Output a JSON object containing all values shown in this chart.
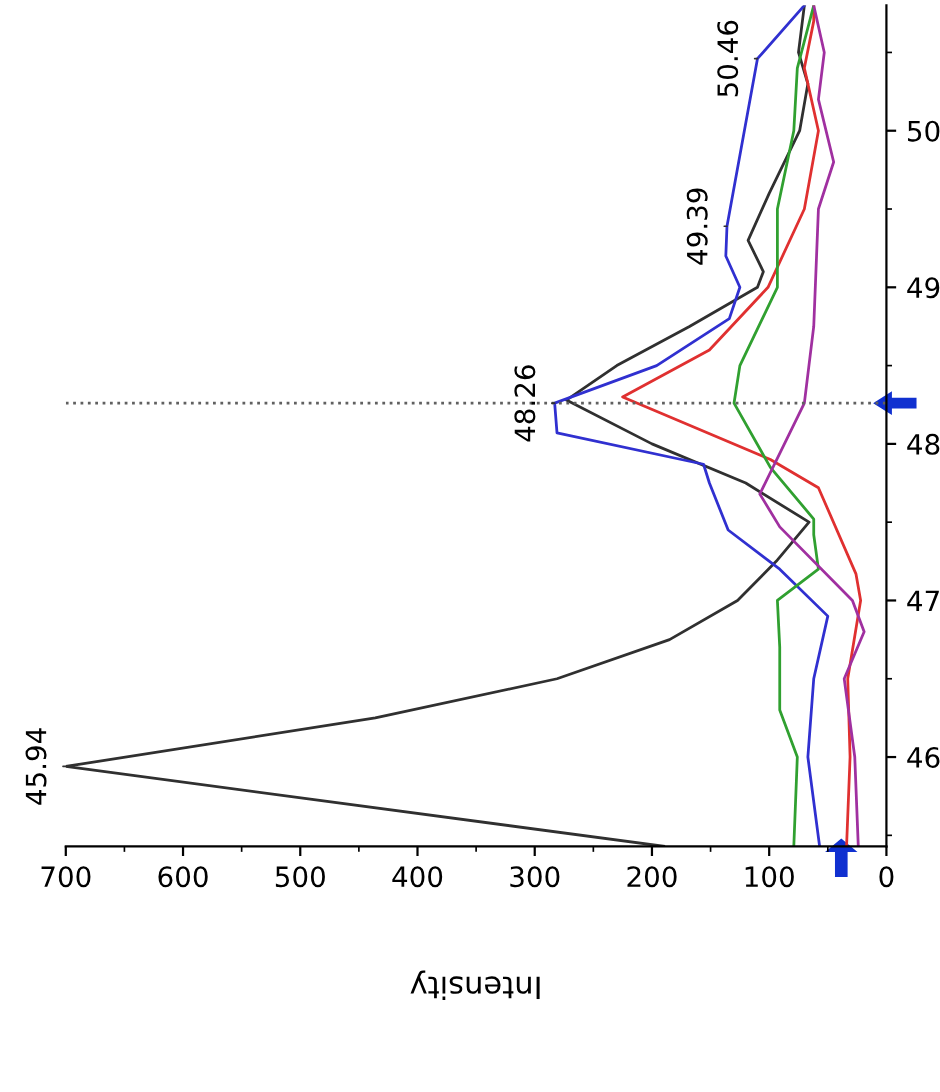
{
  "chart_data": {
    "type": "line",
    "xlabel": "Intensity",
    "series": [
      {
        "color": "#303030",
        "x": [
          190,
          700,
          436,
          281,
          185,
          127,
          94,
          66,
          120,
          200,
          273,
          230,
          168,
          110,
          105,
          118,
          100,
          74,
          67,
          75,
          70
        ],
        "values": [
          45.43,
          45.94,
          46.25,
          46.5,
          46.75,
          47.0,
          47.25,
          47.5,
          47.75,
          48.0,
          48.28,
          48.5,
          48.75,
          49.0,
          49.1,
          49.3,
          49.6,
          50.0,
          50.3,
          50.5,
          50.8
        ]
      },
      {
        "color": "#3030d0",
        "x": [
          57,
          67,
          62,
          50,
          91,
          135,
          151,
          156,
          281,
          283,
          196,
          134,
          125,
          137,
          136,
          110,
          70
        ],
        "values": [
          45.43,
          46.0,
          46.5,
          46.9,
          47.2,
          47.45,
          47.75,
          47.87,
          48.07,
          48.26,
          48.5,
          48.8,
          49.0,
          49.2,
          49.39,
          50.46,
          50.8
        ]
      },
      {
        "color": "#e03030",
        "x": [
          34,
          31,
          33,
          22,
          26,
          58,
          99,
          225,
          151,
          101,
          70,
          58,
          70,
          62,
          62
        ],
        "values": [
          45.43,
          46.0,
          46.5,
          47.0,
          47.17,
          47.72,
          47.9,
          48.3,
          48.6,
          49.0,
          49.5,
          50.0,
          50.4,
          50.7,
          50.8
        ]
      },
      {
        "color": "#30a030",
        "x": [
          79,
          76,
          91,
          91,
          93,
          58,
          62,
          62,
          99,
          130,
          125,
          93,
          93,
          79,
          76,
          62
        ],
        "values": [
          45.43,
          46.0,
          46.3,
          46.7,
          47.0,
          47.2,
          47.42,
          47.52,
          47.85,
          48.26,
          48.5,
          49.0,
          49.5,
          50.0,
          50.4,
          50.8
        ]
      },
      {
        "color": "#a030a0",
        "x": [
          24,
          27,
          36,
          19,
          29,
          91,
          108,
          87,
          70,
          62,
          58,
          45,
          58,
          53,
          62
        ],
        "values": [
          45.43,
          46.0,
          46.5,
          46.8,
          47.0,
          47.47,
          47.68,
          48.0,
          48.26,
          48.75,
          49.5,
          49.8,
          50.2,
          50.5,
          50.8
        ]
      }
    ],
    "annotations": [
      {
        "text": "45.94",
        "x": 700,
        "y": 45.94
      },
      {
        "text": "48.26",
        "x": 283,
        "y": 48.26
      },
      {
        "text": "49.39",
        "x": 136,
        "y": 49.39
      },
      {
        "text": "50.46",
        "x": 110,
        "y": 50.46
      }
    ],
    "ref_lines": [
      {
        "axis": "y",
        "value": 48.26,
        "color": "#606060",
        "line_style": "dotted"
      }
    ],
    "xlim": [
      700,
      0
    ],
    "xticks": [
      700,
      600,
      500,
      400,
      300,
      200,
      100,
      0
    ],
    "ylim": [
      45.43,
      50.8
    ],
    "yticks": [
      46,
      47,
      48,
      49,
      50
    ],
    "grid": false,
    "legend": false,
    "marker": "none",
    "line_style": "solid"
  }
}
